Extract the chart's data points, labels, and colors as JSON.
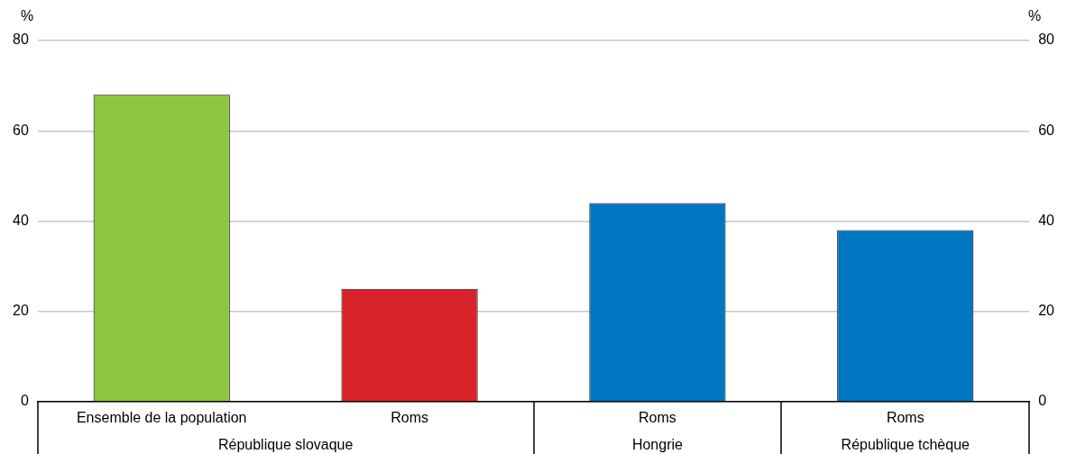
{
  "chart_data": {
    "type": "bar",
    "categories": [
      "Ensemble de la population",
      "Roms",
      "Roms",
      "Roms"
    ],
    "values": [
      68,
      25,
      44,
      38
    ],
    "colors": [
      "#8cc63f",
      "#d9232a",
      "#0077c0",
      "#0077c0"
    ],
    "ylabel": "%",
    "y2label": "%",
    "ylim": [
      0,
      80
    ],
    "yticks": [
      0,
      20,
      40,
      60,
      80
    ],
    "y2lim": [
      0,
      80
    ],
    "y2ticks": [
      0,
      20,
      40,
      60,
      80
    ],
    "grid": "y",
    "annotations": [
      "République slovaque",
      "Hongrie",
      "République tchèque"
    ]
  }
}
